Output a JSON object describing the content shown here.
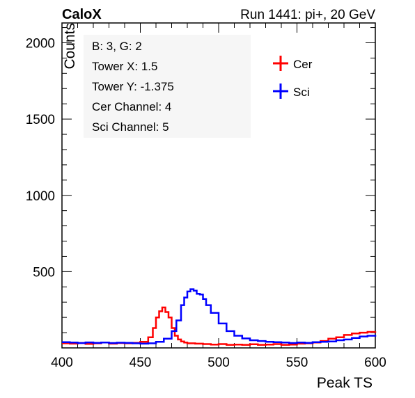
{
  "header": {
    "brand": "CaloX",
    "run_info": "Run 1441: pi+, 20 GeV"
  },
  "info_box": {
    "lines": [
      "B: 3, G: 2",
      "Tower X: 1.5",
      "Tower Y: -1.375",
      "Cer Channel: 4",
      "Sci Channel: 5"
    ]
  },
  "chart_data": {
    "type": "line",
    "xlabel": "Peak TS",
    "ylabel": "Counts",
    "xlim": [
      400,
      600
    ],
    "ylim": [
      0,
      2130
    ],
    "x_ticks": [
      400,
      450,
      500,
      550,
      600
    ],
    "y_ticks": [
      500,
      1000,
      1500,
      2000
    ],
    "legend_position": "top-right",
    "series": [
      {
        "name": "Cer",
        "color": "#ff0000",
        "x": [
          400,
          405,
          410,
          415,
          420,
          425,
          430,
          435,
          440,
          445,
          450,
          455,
          458,
          460,
          462,
          464,
          466,
          468,
          470,
          472,
          474,
          476,
          478,
          480,
          485,
          490,
          495,
          500,
          505,
          510,
          515,
          520,
          525,
          530,
          535,
          540,
          545,
          550,
          555,
          560,
          565,
          570,
          575,
          580,
          585,
          590,
          595,
          600
        ],
        "values": [
          30,
          28,
          32,
          26,
          30,
          35,
          28,
          32,
          30,
          33,
          40,
          70,
          130,
          200,
          240,
          265,
          235,
          200,
          130,
          80,
          55,
          42,
          35,
          30,
          28,
          25,
          22,
          25,
          20,
          22,
          20,
          24,
          20,
          22,
          25,
          20,
          22,
          28,
          30,
          35,
          45,
          60,
          70,
          85,
          95,
          100,
          105,
          108
        ]
      },
      {
        "name": "Sci",
        "color": "#0000ff",
        "x": [
          400,
          405,
          410,
          415,
          420,
          425,
          430,
          435,
          440,
          445,
          450,
          455,
          460,
          465,
          470,
          473,
          476,
          478,
          480,
          482,
          484,
          486,
          488,
          490,
          492,
          495,
          500,
          505,
          510,
          515,
          520,
          525,
          530,
          535,
          540,
          545,
          550,
          555,
          560,
          565,
          570,
          575,
          580,
          585,
          590,
          595,
          600
        ],
        "values": [
          38,
          35,
          32,
          36,
          33,
          35,
          32,
          34,
          33,
          30,
          28,
          30,
          40,
          60,
          110,
          180,
          280,
          330,
          370,
          385,
          375,
          355,
          350,
          320,
          280,
          230,
          160,
          110,
          80,
          62,
          50,
          45,
          40,
          38,
          35,
          32,
          35,
          33,
          38,
          40,
          42,
          50,
          55,
          65,
          75,
          80,
          85
        ]
      }
    ]
  }
}
